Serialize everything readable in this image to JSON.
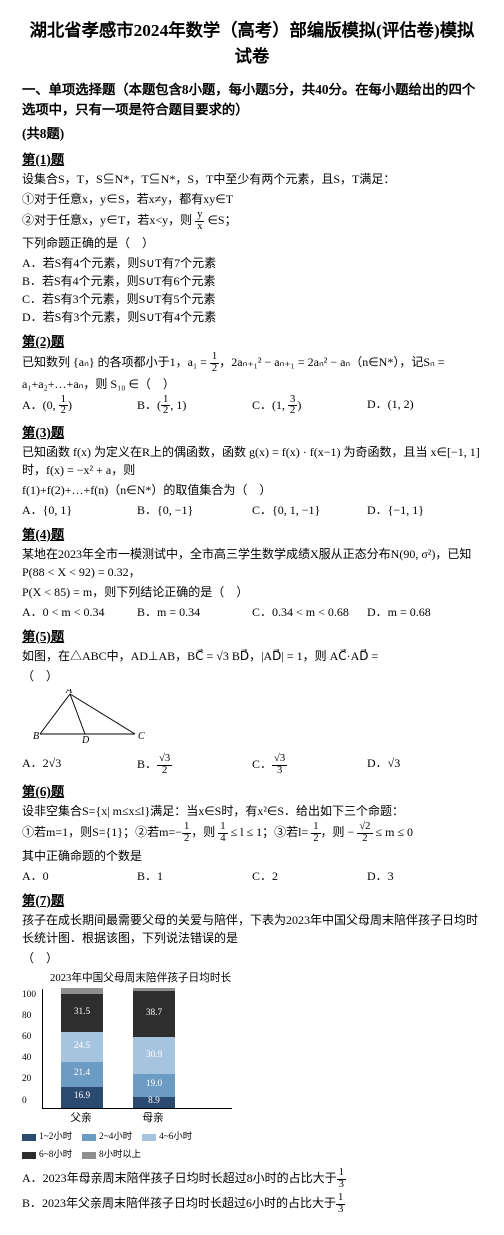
{
  "title": "湖北省孝感市2024年数学（高考）部编版模拟(评估卷)模拟试卷",
  "section_intro_a": "一、单项选择题（本题包含8小题，每小题5分，共40分。在每小题给出的四个选项中，只有一项是符合题目要求的）",
  "section_intro_b": "(共8题)",
  "q1": {
    "label": "第(1)题",
    "l1": "设集合S，T，S⊆N*，T⊆N*，S，T中至少有两个元素，且S，T满足：",
    "l2": "①对于任意x，y∈S，若x≠y，都有xy∈T",
    "l3": "②对于任意x，y∈T，若x<y，则",
    "l3b": "∈S；",
    "l4": "下列命题正确的是（　）",
    "A": "A．若S有4个元素，则S∪T有7个元素",
    "B": "B．若S有4个元素，则S∪T有6个元素",
    "C": "C．若S有3个元素，则S∪T有5个元素",
    "D": "D．若S有3个元素，则S∪T有4个元素"
  },
  "q2": {
    "label": "第(2)题",
    "body": "已知数列 {aₙ} 的各项都小于1，a₁ = ",
    "body2": "，2aₙ₊₁² − aₙ₊₁ = 2aₙ² − aₙ（n∈N*），记Sₙ = a₁+a₂+…+aₙ，则 S₁₀ ∈（　）",
    "A": "A．",
    "Atail": "(0, ½)",
    "B": "B．",
    "Btail": "(½, 1)",
    "C": "C．",
    "Ctail": "(1, 3/2)",
    "D": "D．(1, 2)"
  },
  "q3": {
    "label": "第(3)题",
    "body": "已知函数 f(x) 为定义在R上的偶函数，函数 g(x) = f(x) · f(x−1) 为奇函数，且当 x∈[−1, 1] 时，f(x) = −x² + a，则",
    "body2": "f(1)+f(2)+…+f(n)（n∈N*）的取值集合为（　）",
    "A": "A．{0, 1}",
    "B": "B．{0, −1}",
    "C": "C．{0, 1, −1}",
    "D": "D．{−1, 1}"
  },
  "q4": {
    "label": "第(4)题",
    "body": "某地在2023年全市一模测试中，全市高三学生数学成绩X服从正态分布N(90, σ²)，已知P(88 < X < 92) = 0.32，",
    "body2": "P(X < 85) = m，则下列结论正确的是（　）",
    "A": "A．0 < m < 0.34",
    "B": "B．m = 0.34",
    "C": "C．0.34 < m < 0.68",
    "D": "D．m = 0.68"
  },
  "q5": {
    "label": "第(5)题",
    "body": "如图，在△ABC中，AD⊥AB，BC⃗ = √3 BD⃗，|AD⃗| = 1，则 AC⃗·AD⃗ =",
    "tail": "（　）",
    "A": "A．2√3",
    "B": "B．",
    "C": "C．",
    "D": "D．√3"
  },
  "q6": {
    "label": "第(6)题",
    "body": "设非空集合S={x| m≤x≤l}满足：当x∈S时，有x²∈S．给出如下三个命题：",
    "body2": "①若m=1，则S={1}；②若m=−",
    "body2b": "，则",
    "body2c": " ≤ l ≤ 1；③若l=",
    "body2d": "，则 −",
    "body2e": " ≤ m ≤ 0",
    "body3": "其中正确命题的个数是",
    "A": "A．0",
    "B": "B．1",
    "C": "C．2",
    "D": "D．3"
  },
  "q7": {
    "label": "第(7)题",
    "body": "孩子在成长期间最需要父母的关爱与陪伴，下表为2023年中国父母周末陪伴孩子日均时长统计图．根据该图，下列说法错误的是",
    "tail": "（　）",
    "chart": {
      "title": "2023年中国父母周末陪伴孩子日均时长",
      "ylabel_pct": [
        "0",
        "20",
        "40",
        "60",
        "80",
        "100"
      ],
      "xlabels": [
        "父亲",
        "母亲"
      ],
      "stacks": [
        {
          "segs": [
            {
              "v": 16.9,
              "color": "#2b4a6f",
              "label": "16.9"
            },
            {
              "v": 21.4,
              "color": "#6c9bc3",
              "label": "21.4"
            },
            {
              "v": 24.5,
              "color": "#a7c4de",
              "label": "24.5"
            },
            {
              "v": 31.5,
              "color": "#2e2e2e",
              "label": "31.5"
            },
            {
              "v": 5.7,
              "color": "#8e8e8e",
              "label": ""
            }
          ]
        },
        {
          "segs": [
            {
              "v": 8.9,
              "color": "#2b4a6f",
              "label": "8.9"
            },
            {
              "v": 19.0,
              "color": "#6c9bc3",
              "label": "19.0"
            },
            {
              "v": 30.9,
              "color": "#a7c4de",
              "label": "30.9"
            },
            {
              "v": 38.7,
              "color": "#2e2e2e",
              "label": "38.7"
            },
            {
              "v": 2.5,
              "color": "#8e8e8e",
              "label": ""
            }
          ]
        }
      ],
      "legend": [
        {
          "label": "1~2小时",
          "color": "#2b4a6f"
        },
        {
          "label": "2~4小时",
          "color": "#6c9bc3"
        },
        {
          "label": "4~6小时",
          "color": "#a7c4de"
        },
        {
          "label": "6~8小时",
          "color": "#2e2e2e"
        },
        {
          "label": "8小时以上",
          "color": "#8e8e8e"
        }
      ]
    },
    "A": "A．2023年母亲周末陪伴孩子日均时长超过8小时的占比大于",
    "B": "B．2023年父亲周末陪伴孩子日均时长超过6小时的占比大于"
  }
}
